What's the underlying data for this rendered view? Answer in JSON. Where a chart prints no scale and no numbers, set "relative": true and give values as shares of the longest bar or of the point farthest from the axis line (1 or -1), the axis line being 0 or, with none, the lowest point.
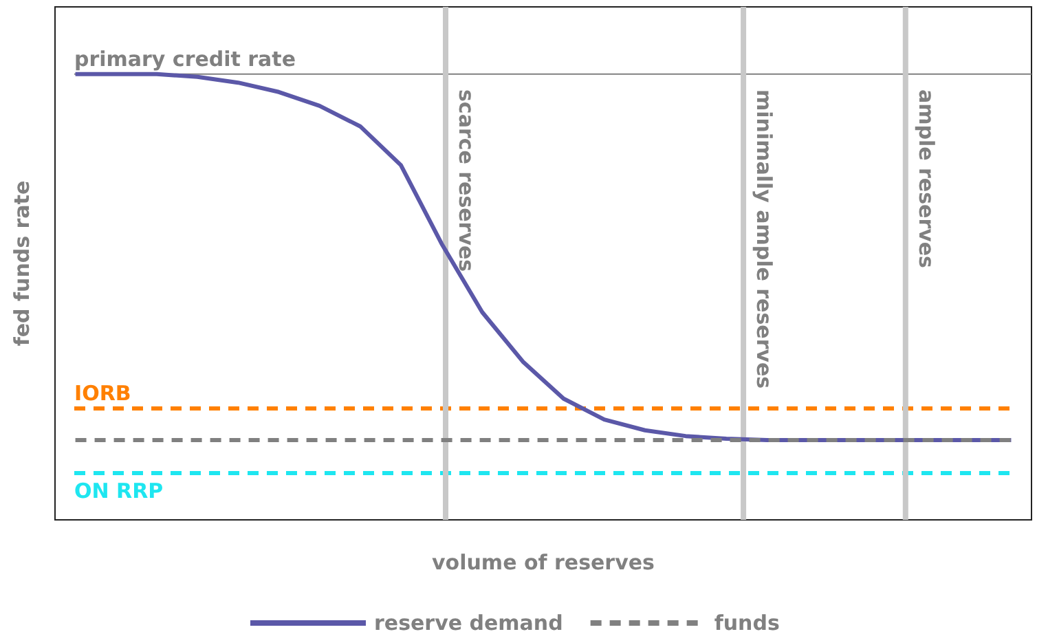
{
  "chart_data": {
    "type": "line",
    "relative": true,
    "xlabel": "volume of reserves",
    "ylabel": "fed funds rate",
    "categories": [
      null,
      null,
      null,
      null,
      null,
      null,
      null,
      null,
      null,
      null,
      null,
      null,
      null,
      null,
      null,
      null,
      null,
      null,
      null,
      null,
      null,
      null,
      null,
      null
    ],
    "series": [
      {
        "name": "reserve demand",
        "color": "#5b58a8",
        "line_style": "solid",
        "values": [
          1,
          1,
          1,
          0.994,
          0.981,
          0.96,
          0.929,
          0.883,
          0.796,
          0.62,
          0.466,
          0.355,
          0.272,
          0.225,
          0.201,
          0.188,
          0.182,
          0.179,
          0.179,
          0.179,
          0.179,
          0.179,
          0.179,
          0.179
        ]
      },
      {
        "name": "funds",
        "color": "#808080",
        "line_style": "dashed",
        "values": [
          0.179,
          0.179,
          0.179,
          0.179,
          0.179,
          0.179,
          0.179,
          0.179,
          0.179,
          0.179,
          0.179,
          0.179,
          0.179,
          0.179,
          0.179,
          0.179,
          0.179,
          0.179,
          0.179,
          0.179,
          0.179,
          0.179,
          0.179,
          0.179
        ]
      }
    ],
    "ref_lines": [
      {
        "axis": "y",
        "value": 1,
        "label": "primary credit rate",
        "color": "#808080",
        "line_style": "solid"
      },
      {
        "axis": "y",
        "value": 0.25,
        "label": "IORB",
        "color": "#ff8000",
        "line_style": "dashed"
      },
      {
        "axis": "y",
        "value": 0.105,
        "label": "ON RRP",
        "color": "#1ee6f0",
        "line_style": "dashed"
      }
    ],
    "annotations": [
      "scarce reserves",
      "minimally ample reserves",
      "ample reserves"
    ],
    "grid": false,
    "legend": "bottom",
    "marker": "none"
  }
}
